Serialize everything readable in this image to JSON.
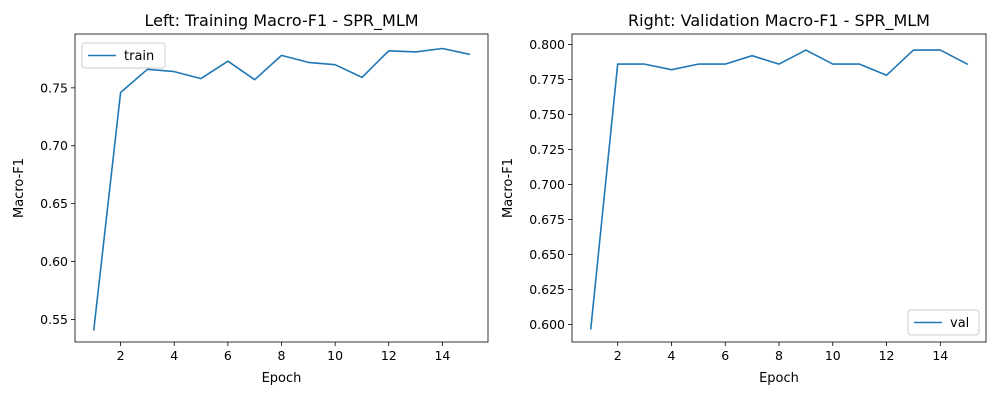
{
  "chart_data": [
    {
      "type": "line",
      "title": "Left: Training Macro-F1 - SPR_MLM",
      "xlabel": "Epoch",
      "ylabel": "Macro-F1",
      "xlim": [
        0.3,
        15.7
      ],
      "ylim": [
        0.5305,
        0.7965
      ],
      "xticks": [
        2,
        4,
        6,
        8,
        10,
        12,
        14
      ],
      "yticks": [
        0.55,
        0.6,
        0.65,
        0.7,
        0.75
      ],
      "ytick_labels": [
        "0.55",
        "0.60",
        "0.65",
        "0.70",
        "0.75"
      ],
      "legend": "upper-left",
      "color": "#1f77b4",
      "series": [
        {
          "name": "train",
          "x": [
            1,
            2,
            3,
            4,
            5,
            6,
            7,
            8,
            9,
            10,
            11,
            12,
            13,
            14,
            15
          ],
          "values": [
            0.541,
            0.746,
            0.766,
            0.764,
            0.758,
            0.773,
            0.757,
            0.778,
            0.772,
            0.77,
            0.759,
            0.782,
            0.781,
            0.784,
            0.779
          ]
        }
      ]
    },
    {
      "type": "line",
      "title": "Right: Validation Macro-F1 - SPR_MLM",
      "xlabel": "Epoch",
      "ylabel": "Macro-F1",
      "xlim": [
        0.3,
        15.7
      ],
      "ylim": [
        0.5875,
        0.8075
      ],
      "xticks": [
        2,
        4,
        6,
        8,
        10,
        12,
        14
      ],
      "yticks": [
        0.6,
        0.625,
        0.65,
        0.675,
        0.7,
        0.725,
        0.75,
        0.775,
        0.8
      ],
      "ytick_labels": [
        "0.600",
        "0.625",
        "0.650",
        "0.675",
        "0.700",
        "0.725",
        "0.750",
        "0.775",
        "0.800"
      ],
      "legend": "lower-right",
      "color": "#1f77b4",
      "series": [
        {
          "name": "val",
          "x": [
            1,
            2,
            3,
            4,
            5,
            6,
            7,
            8,
            9,
            10,
            11,
            12,
            13,
            14,
            15
          ],
          "values": [
            0.597,
            0.786,
            0.786,
            0.782,
            0.786,
            0.786,
            0.792,
            0.786,
            0.796,
            0.786,
            0.786,
            0.778,
            0.796,
            0.796,
            0.786
          ]
        }
      ]
    }
  ]
}
